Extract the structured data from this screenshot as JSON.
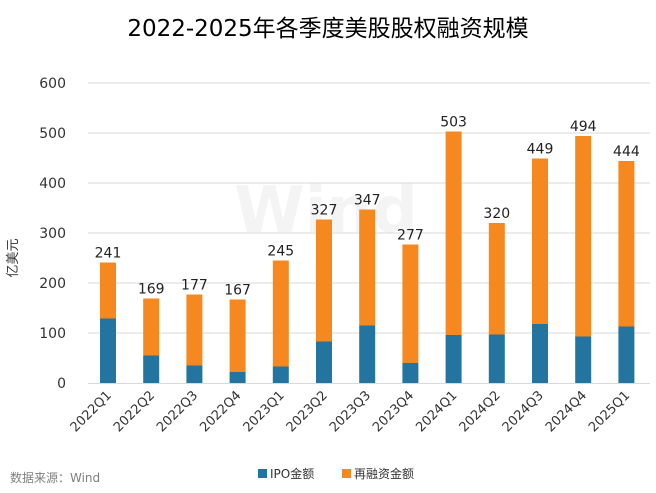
{
  "chart_data": {
    "type": "bar",
    "stacked": true,
    "title": "2022-2025年各季度美股股权融资规模",
    "ylabel": "亿美元",
    "xlabel": "",
    "ylim": [
      0,
      600
    ],
    "yticks": [
      0,
      100,
      200,
      300,
      400,
      500,
      600
    ],
    "categories": [
      "2022Q1",
      "2022Q2",
      "2022Q3",
      "2022Q4",
      "2023Q1",
      "2023Q2",
      "2023Q3",
      "2023Q4",
      "2024Q1",
      "2024Q2",
      "2024Q3",
      "2024Q4",
      "2025Q1"
    ],
    "series": [
      {
        "name": "IPO金额",
        "color": "#2474A0",
        "values": [
          129,
          55,
          35,
          22,
          33,
          83,
          115,
          40,
          96,
          97,
          118,
          93,
          113
        ]
      },
      {
        "name": "再融资金额",
        "color": "#F5891F",
        "values": [
          112,
          114,
          142,
          145,
          212,
          244,
          232,
          237,
          407,
          223,
          331,
          401,
          331
        ]
      }
    ],
    "totals": [
      241,
      169,
      177,
      167,
      245,
      327,
      347,
      277,
      503,
      320,
      449,
      494,
      444
    ],
    "legend_position": "bottom",
    "grid": true
  },
  "source": "数据来源：Wind",
  "watermark": "Wind"
}
